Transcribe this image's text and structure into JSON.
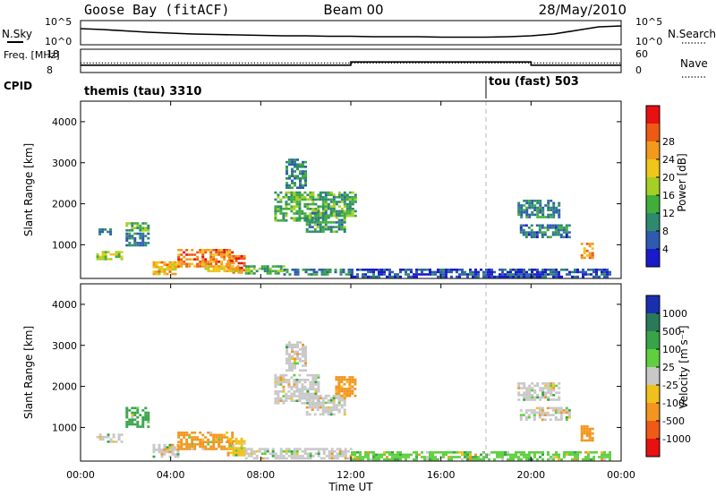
{
  "chart_data": [
    {
      "type": "line",
      "title": "Goose Bay (fitACF)",
      "subtitle": "Beam 00",
      "date": "28/May/2010",
      "left_label": "N.Sky",
      "right_label": "N.Search",
      "left_ticks": [
        "10^5",
        "10^0"
      ],
      "right_ticks": [
        "10^5",
        "10^0"
      ],
      "xlim": [
        0,
        24
      ],
      "series": [
        {
          "name": "N.Sky",
          "style": "solid",
          "x": [
            0,
            1,
            2,
            3,
            4,
            5,
            6,
            7,
            8,
            9,
            10,
            11,
            12,
            13,
            14,
            15,
            16,
            17,
            18,
            19,
            20,
            21,
            22,
            23,
            24
          ],
          "values": [
            3.4,
            3.2,
            2.9,
            2.6,
            2.4,
            2.2,
            2.1,
            2.0,
            1.9,
            1.8,
            1.8,
            1.7,
            1.7,
            1.6,
            1.6,
            1.6,
            1.5,
            1.5,
            1.5,
            1.6,
            1.8,
            2.2,
            3.0,
            3.8,
            4.0
          ]
        }
      ]
    },
    {
      "type": "line",
      "left_label": "Freq. [MHz]",
      "right_label": "Nave",
      "left_ticks": [
        "18",
        "8"
      ],
      "right_ticks": [
        "60",
        "0"
      ],
      "ylim_left": [
        8,
        18
      ],
      "ylim_right": [
        0,
        60
      ],
      "xlim": [
        0,
        24
      ],
      "series": [
        {
          "name": "Freq.",
          "style": "solid",
          "x": [
            0,
            12,
            12,
            20,
            20,
            24
          ],
          "values": [
            11,
            11,
            12.5,
            12.5,
            11,
            11
          ]
        },
        {
          "name": "Nave",
          "style": "dotted",
          "x": [
            0,
            12,
            24
          ],
          "values": [
            12,
            12,
            12
          ]
        }
      ]
    },
    {
      "type": "table",
      "label": "CPID",
      "entries": [
        {
          "start_hour": 0,
          "text": "themis (tau) 3310"
        },
        {
          "start_hour": 18,
          "text": "tou (fast) 503"
        }
      ]
    },
    {
      "type": "heatmap",
      "ylabel": "Slant Range [km]",
      "ylim": [
        180,
        4500
      ],
      "yticks": [
        1000,
        2000,
        3000,
        4000
      ],
      "xlim": [
        0,
        24
      ],
      "colorbar_label": "Power [dB]",
      "colorbar_ticks": [
        "4",
        "8",
        "12",
        "16",
        "20",
        "24",
        "28"
      ],
      "colorbar_colors": [
        "#1a1acc",
        "#2e5bb0",
        "#2d8a6e",
        "#3fae3a",
        "#a6cf24",
        "#f0c61a",
        "#f39a1c",
        "#ee5a14",
        "#e81010"
      ],
      "patches": [
        {
          "x": [
            0.7,
            1.8
          ],
          "y": [
            650,
            850
          ],
          "value": 18
        },
        {
          "x": [
            0.8,
            1.3
          ],
          "y": [
            1250,
            1400
          ],
          "value": 8
        },
        {
          "x": [
            2.0,
            3.0
          ],
          "y": [
            1000,
            1300
          ],
          "value": 9
        },
        {
          "x": [
            2.0,
            3.0
          ],
          "y": [
            1350,
            1550
          ],
          "value": 14
        },
        {
          "x": [
            3.2,
            4.3
          ],
          "y": [
            300,
            600
          ],
          "value": 23
        },
        {
          "x": [
            4.3,
            6.7
          ],
          "y": [
            500,
            900
          ],
          "value": 26
        },
        {
          "x": [
            6.5,
            7.3
          ],
          "y": [
            300,
            750
          ],
          "value": 28
        },
        {
          "x": [
            5.5,
            7.0
          ],
          "y": [
            350,
            500
          ],
          "value": 22
        },
        {
          "x": [
            7.3,
            9.0
          ],
          "y": [
            300,
            500
          ],
          "value": 14
        },
        {
          "x": [
            9.0,
            12.0
          ],
          "y": [
            250,
            420
          ],
          "value": 10
        },
        {
          "x": [
            8.6,
            10.6
          ],
          "y": [
            1600,
            2300
          ],
          "value": 14
        },
        {
          "x": [
            9.1,
            10.0
          ],
          "y": [
            2400,
            3100
          ],
          "value": 10
        },
        {
          "x": [
            10.0,
            11.7
          ],
          "y": [
            1300,
            1800
          ],
          "value": 12
        },
        {
          "x": [
            10.6,
            12.2
          ],
          "y": [
            1700,
            2300
          ],
          "value": 13
        },
        {
          "x": [
            19.4,
            21.2
          ],
          "y": [
            1700,
            2100
          ],
          "value": 10
        },
        {
          "x": [
            19.5,
            21.7
          ],
          "y": [
            1200,
            1500
          ],
          "value": 9
        },
        {
          "x": [
            22.2,
            22.7
          ],
          "y": [
            700,
            1050
          ],
          "value": 24
        },
        {
          "x": [
            12.0,
            23.5
          ],
          "y": [
            200,
            420
          ],
          "value": 6
        }
      ]
    },
    {
      "type": "heatmap",
      "ylabel": "Slant Range [km]",
      "xlabel": "Time UT",
      "ylim": [
        180,
        4500
      ],
      "yticks": [
        1000,
        2000,
        3000,
        4000
      ],
      "xlim": [
        0,
        24
      ],
      "xtick_labels": [
        "00:00",
        "04:00",
        "08:00",
        "12:00",
        "16:00",
        "20:00",
        "00:00"
      ],
      "colorbar_label": "Velocity [m s⁻¹]",
      "colorbar_ticks": [
        "1000",
        "500",
        "100",
        "25",
        "-25",
        "-100",
        "-500",
        "-1000"
      ],
      "colorbar_colors": [
        "#1a2fb0",
        "#2a7a5a",
        "#37a44a",
        "#5fcf3f",
        "#c8c8c8",
        "#f0c11c",
        "#f3951f",
        "#ef5a16",
        "#e81010"
      ],
      "patches": [
        {
          "x": [
            0.7,
            1.8
          ],
          "y": [
            650,
            850
          ],
          "value": 0
        },
        {
          "x": [
            2.0,
            3.0
          ],
          "y": [
            1000,
            1500
          ],
          "value": 150
        },
        {
          "x": [
            3.2,
            4.3
          ],
          "y": [
            300,
            600
          ],
          "value": 0
        },
        {
          "x": [
            4.3,
            6.7
          ],
          "y": [
            500,
            900
          ],
          "value": -120
        },
        {
          "x": [
            6.5,
            7.3
          ],
          "y": [
            300,
            750
          ],
          "value": -60
        },
        {
          "x": [
            7.3,
            12.0
          ],
          "y": [
            250,
            500
          ],
          "value": 0
        },
        {
          "x": [
            8.6,
            10.6
          ],
          "y": [
            1600,
            2300
          ],
          "value": 0
        },
        {
          "x": [
            9.1,
            10.0
          ],
          "y": [
            2400,
            3100
          ],
          "value": 0
        },
        {
          "x": [
            10.0,
            11.7
          ],
          "y": [
            1300,
            1800
          ],
          "value": 0
        },
        {
          "x": [
            11.3,
            12.2
          ],
          "y": [
            1750,
            2250
          ],
          "value": -200
        },
        {
          "x": [
            19.4,
            21.2
          ],
          "y": [
            1700,
            2100
          ],
          "value": 0
        },
        {
          "x": [
            19.5,
            21.7
          ],
          "y": [
            1200,
            1500
          ],
          "value": 0
        },
        {
          "x": [
            22.2,
            22.7
          ],
          "y": [
            700,
            1050
          ],
          "value": -300
        },
        {
          "x": [
            12.0,
            23.5
          ],
          "y": [
            200,
            420
          ],
          "value": 40
        }
      ]
    }
  ]
}
